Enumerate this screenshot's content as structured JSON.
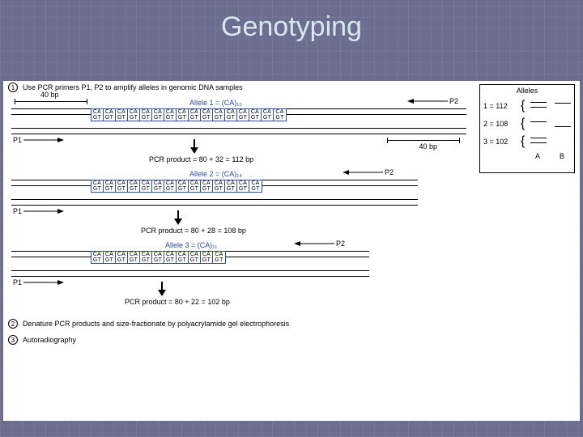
{
  "title": "Genotyping",
  "background_color": "#6b6e8f",
  "title_color": "#d8e8f0",
  "panel_bg": "#ffffff",
  "ca_border": "#2b4aa0",
  "steps": {
    "s1": "Use PCR primers P1, P2 to amplify alleles in genomic DNA samples",
    "s2": "Denature PCR products and size-fractionate by polyacrylamide gel electrophoresis",
    "s3": "Autoradiography"
  },
  "step_nums": {
    "n1": "1",
    "n2": "2",
    "n3": "3"
  },
  "primers": {
    "p1": "P1",
    "p2": "P2"
  },
  "flank": "40 bp",
  "alleles": {
    "a1": {
      "label": "Allele 1 = (CA)₁₆",
      "repeats": 16,
      "pcr": "PCR product = 80 + 32 = 112 bp"
    },
    "a2": {
      "label": "Allele 2 = (CA)₁₄",
      "repeats": 14,
      "pcr": "PCR product = 80 + 28 = 108 bp"
    },
    "a3": {
      "label": "Allele 3 = (CA)₁₁",
      "repeats": 11,
      "pcr": "PCR product = 80 + 22 = 102 bp"
    }
  },
  "ca": "CA",
  "gt": "GT",
  "allele_panel": {
    "title": "Alleles",
    "rows": {
      "r1": "1 = 112",
      "r2": "2 = 108",
      "r3": "3 = 102"
    },
    "lanes": {
      "a": "A",
      "b": "B"
    }
  }
}
